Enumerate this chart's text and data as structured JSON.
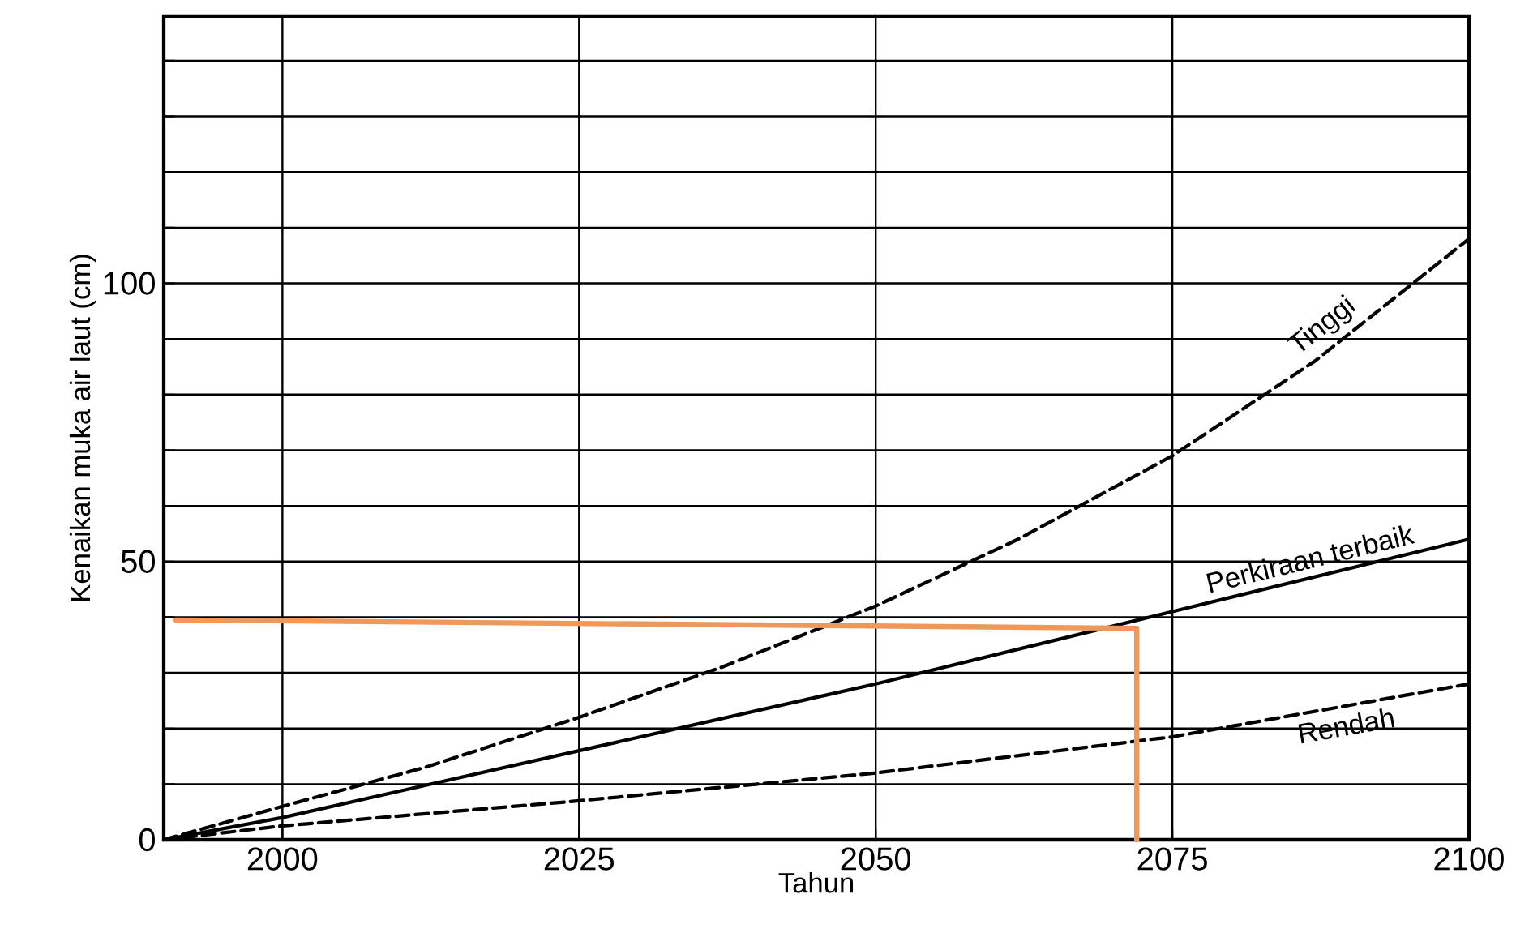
{
  "chart_data": {
    "type": "line",
    "xlabel": "Tahun",
    "ylabel": "Kenaikan muka air laut  (cm)",
    "xlim": [
      1990,
      2100
    ],
    "ylim": [
      0,
      148
    ],
    "xticks": [
      2000,
      2025,
      2050,
      2075,
      2100
    ],
    "yticks": [
      0,
      {
        "value": 10,
        "label": null
      },
      {
        "value": 20,
        "label": null
      },
      {
        "value": 30,
        "label": null
      },
      {
        "value": 40,
        "label": null
      },
      50,
      {
        "value": 60,
        "label": null
      },
      {
        "value": 70,
        "label": null
      },
      {
        "value": 80,
        "label": null
      },
      {
        "value": 90,
        "label": null
      },
      100,
      {
        "value": 110,
        "label": null
      },
      {
        "value": 120,
        "label": null
      },
      {
        "value": 130,
        "label": null
      },
      {
        "value": 140,
        "label": null
      }
    ],
    "grid": true,
    "marker": "none",
    "series": [
      {
        "name": "Tinggi",
        "color": "#000000",
        "line_style": "dashed",
        "x": [
          1990,
          2000,
          2012,
          2025,
          2037,
          2050,
          2062,
          2075,
          2087,
          2100
        ],
        "values": [
          0,
          6,
          13,
          22,
          31,
          42,
          54,
          69,
          86,
          108
        ]
      },
      {
        "name": "Perkiraan terbaik",
        "color": "#000000",
        "line_style": "solid",
        "x": [
          1990,
          2000,
          2025,
          2050,
          2075,
          2100
        ],
        "values": [
          0,
          4,
          16,
          28,
          41,
          54
        ]
      },
      {
        "name": "Rendah",
        "color": "#000000",
        "line_style": "dashed",
        "x": [
          1990,
          2000,
          2025,
          2050,
          2075,
          2100
        ],
        "values": [
          0,
          2.5,
          7,
          12,
          18.5,
          28
        ]
      },
      {
        "color": "#f0975a",
        "line_style": "solid",
        "x": [
          2072,
          2072,
          1991
        ],
        "values": [
          0,
          38,
          39.5
        ]
      }
    ]
  }
}
